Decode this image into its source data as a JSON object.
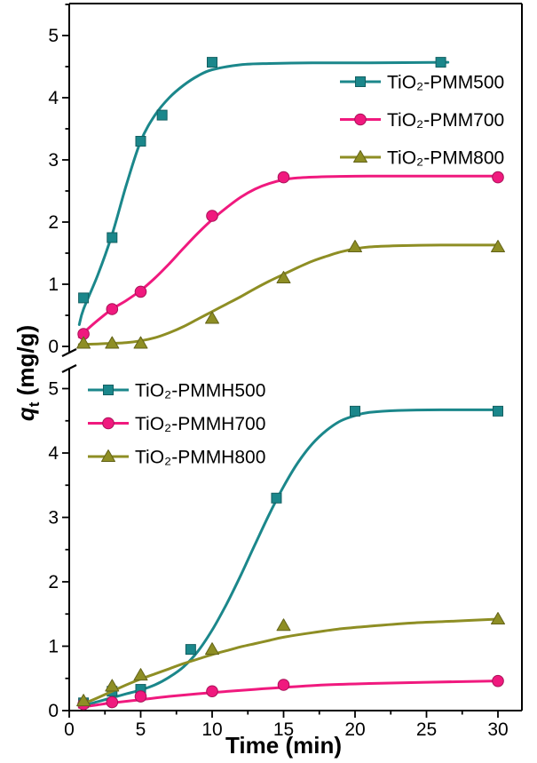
{
  "chart_data": {
    "type": "line",
    "xlabel": "Time (min)",
    "ylabel_q": "q",
    "ylabel_sub": "t",
    "ylabel_rest": " (mg/g)",
    "x_ticks": [
      0,
      5,
      10,
      15,
      20,
      25,
      30
    ],
    "x_range": [
      0,
      31.5
    ],
    "grid": false,
    "panels": [
      {
        "id": "top",
        "y_ticks": [
          0,
          1,
          2,
          3,
          4,
          5
        ],
        "y_range": [
          0,
          5.5
        ],
        "legend_position": "upper-right",
        "series": [
          {
            "name": "TiO₂-PMM500",
            "color": "#1b878b",
            "marker": "square",
            "points": [
              [
                1,
                0.78
              ],
              [
                3,
                1.75
              ],
              [
                5,
                3.3
              ],
              [
                6.5,
                3.72
              ],
              [
                10,
                4.57
              ],
              [
                26,
                4.57
              ]
            ],
            "curve": [
              [
                0.7,
                0.35
              ],
              [
                1,
                0.6
              ],
              [
                2,
                1.15
              ],
              [
                3,
                1.8
              ],
              [
                4,
                2.6
              ],
              [
                5,
                3.3
              ],
              [
                6,
                3.72
              ],
              [
                7,
                4.0
              ],
              [
                8,
                4.2
              ],
              [
                9,
                4.35
              ],
              [
                10,
                4.45
              ],
              [
                12,
                4.53
              ],
              [
                14,
                4.55
              ],
              [
                17,
                4.56
              ],
              [
                21,
                4.56
              ],
              [
                26.5,
                4.57
              ]
            ]
          },
          {
            "name": "TiO₂-PMM700",
            "color": "#f0197e",
            "marker": "circle",
            "points": [
              [
                1,
                0.2
              ],
              [
                3,
                0.6
              ],
              [
                5,
                0.88
              ],
              [
                10,
                2.1
              ],
              [
                15,
                2.72
              ],
              [
                30,
                2.72
              ]
            ],
            "curve": [
              [
                0.7,
                0.15
              ],
              [
                1,
                0.22
              ],
              [
                2,
                0.42
              ],
              [
                3,
                0.6
              ],
              [
                4,
                0.74
              ],
              [
                5,
                0.9
              ],
              [
                6,
                1.1
              ],
              [
                7,
                1.33
              ],
              [
                8,
                1.58
              ],
              [
                9,
                1.82
              ],
              [
                10,
                2.04
              ],
              [
                11,
                2.23
              ],
              [
                12,
                2.4
              ],
              [
                13,
                2.53
              ],
              [
                14,
                2.62
              ],
              [
                15,
                2.68
              ],
              [
                16,
                2.71
              ],
              [
                18,
                2.73
              ],
              [
                21,
                2.74
              ],
              [
                25,
                2.74
              ],
              [
                30,
                2.74
              ]
            ]
          },
          {
            "name": "TiO₂-PMM800",
            "color": "#8e8e24",
            "marker": "triangle",
            "points": [
              [
                1,
                0.05
              ],
              [
                3,
                0.05
              ],
              [
                5,
                0.05
              ],
              [
                10,
                0.45
              ],
              [
                15,
                1.1
              ],
              [
                20,
                1.6
              ],
              [
                30,
                1.6
              ]
            ],
            "curve": [
              [
                0.7,
                0.03
              ],
              [
                2,
                0.04
              ],
              [
                3,
                0.05
              ],
              [
                4,
                0.06
              ],
              [
                5,
                0.09
              ],
              [
                6,
                0.14
              ],
              [
                7,
                0.22
              ],
              [
                8,
                0.32
              ],
              [
                9,
                0.44
              ],
              [
                10,
                0.56
              ],
              [
                11,
                0.68
              ],
              [
                12,
                0.8
              ],
              [
                13,
                0.93
              ],
              [
                14,
                1.05
              ],
              [
                15,
                1.16
              ],
              [
                16,
                1.27
              ],
              [
                17,
                1.37
              ],
              [
                18,
                1.45
              ],
              [
                19,
                1.52
              ],
              [
                20,
                1.57
              ],
              [
                21,
                1.6
              ],
              [
                23,
                1.62
              ],
              [
                26,
                1.63
              ],
              [
                30,
                1.63
              ]
            ]
          }
        ]
      },
      {
        "id": "bottom",
        "y_ticks": [
          0,
          1,
          2,
          3,
          4,
          5
        ],
        "y_range": [
          0,
          5.3
        ],
        "legend_position": "upper-left",
        "series": [
          {
            "name": "TiO₂-PMMH500",
            "color": "#1b878b",
            "marker": "square",
            "points": [
              [
                1,
                0.12
              ],
              [
                3,
                0.3
              ],
              [
                5,
                0.33
              ],
              [
                8.5,
                0.95
              ],
              [
                14.5,
                3.3
              ],
              [
                20,
                4.65
              ],
              [
                30,
                4.65
              ]
            ],
            "curve": [
              [
                0.7,
                0.06
              ],
              [
                2,
                0.14
              ],
              [
                3,
                0.2
              ],
              [
                4,
                0.26
              ],
              [
                5,
                0.32
              ],
              [
                6,
                0.4
              ],
              [
                7,
                0.52
              ],
              [
                8,
                0.68
              ],
              [
                9,
                0.92
              ],
              [
                10,
                1.25
              ],
              [
                11,
                1.65
              ],
              [
                12,
                2.1
              ],
              [
                13,
                2.58
              ],
              [
                14,
                3.05
              ],
              [
                15,
                3.48
              ],
              [
                16,
                3.85
              ],
              [
                17,
                4.14
              ],
              [
                18,
                4.35
              ],
              [
                19,
                4.5
              ],
              [
                20,
                4.58
              ],
              [
                21,
                4.63
              ],
              [
                23,
                4.66
              ],
              [
                26,
                4.67
              ],
              [
                30,
                4.67
              ]
            ]
          },
          {
            "name": "TiO₂-PMMH700",
            "color": "#f0197e",
            "marker": "circle",
            "points": [
              [
                1,
                0.1
              ],
              [
                3,
                0.13
              ],
              [
                5,
                0.22
              ],
              [
                10,
                0.3
              ],
              [
                15,
                0.4
              ],
              [
                30,
                0.46
              ]
            ],
            "curve": [
              [
                0.7,
                0.05
              ],
              [
                2,
                0.09
              ],
              [
                3,
                0.12
              ],
              [
                5,
                0.17
              ],
              [
                7,
                0.22
              ],
              [
                10,
                0.28
              ],
              [
                13,
                0.33
              ],
              [
                15,
                0.36
              ],
              [
                18,
                0.4
              ],
              [
                21,
                0.42
              ],
              [
                25,
                0.44
              ],
              [
                30,
                0.46
              ]
            ]
          },
          {
            "name": "TiO₂-PMMH800",
            "color": "#8e8e24",
            "marker": "triangle",
            "points": [
              [
                1,
                0.15
              ],
              [
                3,
                0.38
              ],
              [
                5,
                0.55
              ],
              [
                10,
                0.95
              ],
              [
                15,
                1.32
              ],
              [
                30,
                1.42
              ]
            ],
            "curve": [
              [
                0.7,
                0.08
              ],
              [
                2,
                0.2
              ],
              [
                3,
                0.3
              ],
              [
                4,
                0.4
              ],
              [
                5,
                0.49
              ],
              [
                6,
                0.57
              ],
              [
                7,
                0.65
              ],
              [
                8,
                0.73
              ],
              [
                9,
                0.8
              ],
              [
                10,
                0.87
              ],
              [
                11,
                0.93
              ],
              [
                12,
                0.99
              ],
              [
                13,
                1.04
              ],
              [
                14,
                1.09
              ],
              [
                15,
                1.14
              ],
              [
                17,
                1.21
              ],
              [
                19,
                1.27
              ],
              [
                21,
                1.31
              ],
              [
                24,
                1.36
              ],
              [
                27,
                1.39
              ],
              [
                30,
                1.42
              ]
            ]
          }
        ]
      }
    ],
    "axis_break": true
  }
}
